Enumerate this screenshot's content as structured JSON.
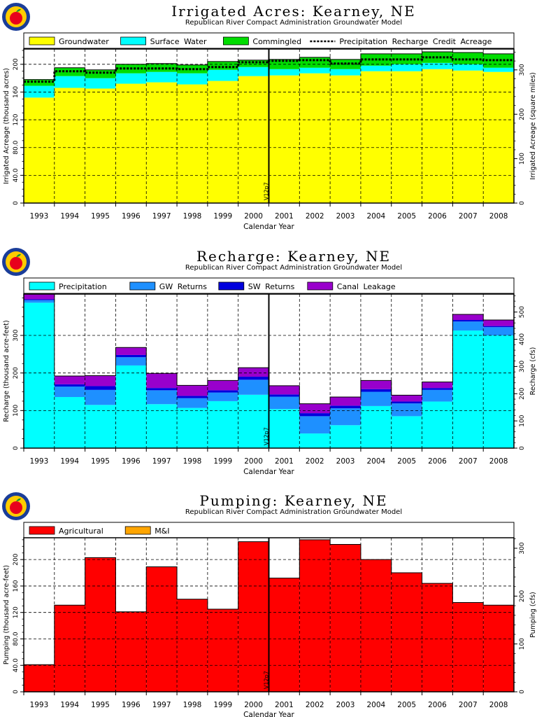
{
  "chart_data": [
    {
      "type": "bar",
      "title": "Irrigated Acres: Kearney, NE",
      "subtitle": "Republican River Compact Administration Groundwater Model",
      "xlabel": "Calendar Year",
      "ylabel": "Irrigated Acreage (thousand acres)",
      "y2label": "Irrigated Acreage (square miles)",
      "categories": [
        "1993",
        "1994",
        "1995",
        "1996",
        "1997",
        "1998",
        "1999",
        "2000",
        "2001",
        "2002",
        "2003",
        "2004",
        "2005",
        "2006",
        "2007",
        "2008"
      ],
      "ylim": [
        0,
        222
      ],
      "yticks": [
        0,
        40,
        80,
        120,
        160,
        200
      ],
      "ytick_labels": [
        "0",
        "40.0",
        "80.0",
        "120",
        "160",
        "200"
      ],
      "y2lim": [
        0,
        347
      ],
      "y2ticks": [
        0,
        100,
        200,
        300
      ],
      "stacked": true,
      "series": [
        {
          "name": "Groundwater",
          "color": "#ffff00",
          "values": [
            152,
            166,
            165,
            172,
            174,
            171,
            176,
            183,
            184,
            187,
            184,
            190,
            190,
            193,
            191,
            189
          ]
        },
        {
          "name": "Surface Water",
          "color": "#00ffff",
          "values": [
            17,
            17,
            15,
            15,
            15,
            16,
            16,
            13,
            9,
            8,
            9,
            8,
            10,
            9,
            9,
            6
          ]
        },
        {
          "name": "Commingled",
          "color": "#00dd00",
          "values": [
            9,
            12,
            12,
            13,
            12,
            12,
            12,
            10,
            14,
            15,
            14,
            17,
            15,
            16,
            17,
            20
          ]
        }
      ],
      "line_series": {
        "name": "Precipitation Recharge Credit Acreage",
        "values": [
          175,
          190,
          188,
          194,
          194,
          193,
          196,
          203,
          205,
          206,
          201,
          207,
          207,
          210,
          207,
          206
        ]
      },
      "marker_label": "V12p7",
      "marker_at_year_boundary": "2000/2001"
    },
    {
      "type": "bar",
      "title": "Recharge: Kearney, NE",
      "subtitle": "Republican River Compact Administration Groundwater Model",
      "xlabel": "Calendar Year",
      "ylabel": "Recharge (thousand acre-feet)",
      "y2label": "Recharge (cfs)",
      "categories": [
        "1993",
        "1994",
        "1995",
        "1996",
        "1997",
        "1998",
        "1999",
        "2000",
        "2001",
        "2002",
        "2003",
        "2004",
        "2005",
        "2006",
        "2007",
        "2008"
      ],
      "ylim": [
        0,
        410
      ],
      "yticks": [
        0,
        100,
        200,
        300
      ],
      "ytick_labels": [
        "0",
        "100",
        "200",
        "300"
      ],
      "y2lim": [
        0,
        566
      ],
      "y2ticks": [
        0,
        100,
        200,
        300,
        400,
        500
      ],
      "stacked": true,
      "series": [
        {
          "name": "Precipitation",
          "color": "#00ffff",
          "values": [
            387,
            136,
            115,
            220,
            117,
            107,
            125,
            142,
            104,
            39,
            61,
            112,
            85,
            124,
            313,
            300
          ]
        },
        {
          "name": "GW Returns",
          "color": "#1e90ff",
          "values": [
            7,
            28,
            40,
            22,
            37,
            26,
            23,
            40,
            33,
            46,
            45,
            38,
            34,
            31,
            24,
            22
          ]
        },
        {
          "name": "SW Returns",
          "color": "#0000dd",
          "values": [
            2,
            6,
            10,
            6,
            6,
            6,
            6,
            8,
            6,
            8,
            7,
            7,
            5,
            5,
            4,
            3
          ]
        },
        {
          "name": "Canal Leakage",
          "color": "#9900cc",
          "values": [
            14,
            22,
            28,
            20,
            39,
            28,
            26,
            24,
            23,
            25,
            23,
            23,
            17,
            16,
            15,
            16
          ]
        }
      ],
      "marker_label": "V12p7",
      "marker_at_year_boundary": "2000/2001"
    },
    {
      "type": "bar",
      "title": "Pumping: Kearney, NE",
      "subtitle": "Republican River Compact Administration Groundwater Model",
      "xlabel": "Calendar Year",
      "ylabel": "Pumping (thousand acre-feet)",
      "y2label": "Pumping (cfs)",
      "categories": [
        "1993",
        "1994",
        "1995",
        "1996",
        "1997",
        "1998",
        "1999",
        "2000",
        "2001",
        "2002",
        "2003",
        "2004",
        "2005",
        "2006",
        "2007",
        "2008"
      ],
      "ylim": [
        0,
        233
      ],
      "yticks": [
        0,
        40,
        80,
        120,
        160,
        200
      ],
      "ytick_labels": [
        "0",
        "40.0",
        "80.0",
        "120",
        "160",
        "200"
      ],
      "y2lim": [
        0,
        322
      ],
      "y2ticks": [
        0,
        100,
        200,
        300
      ],
      "stacked": true,
      "series": [
        {
          "name": "Agricultural",
          "color": "#ff0000",
          "values": [
            41,
            131,
            203,
            121,
            189,
            140,
            125,
            227,
            172,
            230,
            223,
            200,
            180,
            164,
            135,
            131
          ]
        },
        {
          "name": "M&I",
          "color": "#ffa500",
          "values": [
            0,
            0,
            0,
            0,
            0,
            0,
            0,
            0,
            0,
            0,
            0,
            0,
            0,
            0,
            0,
            0
          ]
        }
      ],
      "marker_label": "V12p7",
      "marker_at_year_boundary": "2000/2001"
    }
  ]
}
